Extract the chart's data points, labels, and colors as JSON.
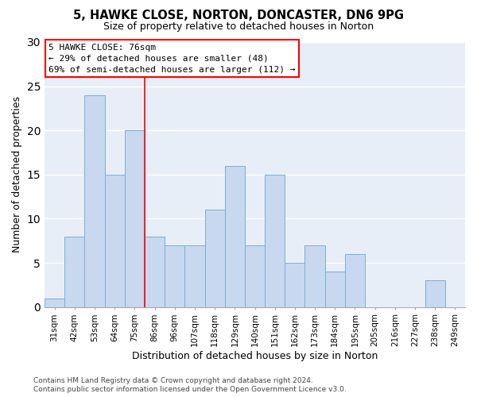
{
  "title1": "5, HAWKE CLOSE, NORTON, DONCASTER, DN6 9PG",
  "title2": "Size of property relative to detached houses in Norton",
  "xlabel": "Distribution of detached houses by size in Norton",
  "ylabel": "Number of detached properties",
  "categories": [
    "31sqm",
    "42sqm",
    "53sqm",
    "64sqm",
    "75sqm",
    "86sqm",
    "96sqm",
    "107sqm",
    "118sqm",
    "129sqm",
    "140sqm",
    "151sqm",
    "162sqm",
    "173sqm",
    "184sqm",
    "195sqm",
    "205sqm",
    "216sqm",
    "227sqm",
    "238sqm",
    "249sqm"
  ],
  "values": [
    1,
    8,
    24,
    15,
    20,
    8,
    7,
    7,
    11,
    16,
    7,
    15,
    5,
    7,
    4,
    6,
    0,
    0,
    0,
    3,
    0
  ],
  "bar_color": "#c8d8ee",
  "bar_edge_color": "#7aafd4",
  "ylim": [
    0,
    30
  ],
  "yticks": [
    0,
    5,
    10,
    15,
    20,
    25,
    30
  ],
  "annotation_title": "5 HAWKE CLOSE: 76sqm",
  "annotation_line1": "← 29% of detached houses are smaller (48)",
  "annotation_line2": "69% of semi-detached houses are larger (112) →",
  "footer1": "Contains HM Land Registry data © Crown copyright and database right 2024.",
  "footer2": "Contains public sector information licensed under the Open Government Licence v3.0.",
  "bg_color": "#ffffff",
  "plot_bg_color": "#e8eef8",
  "grid_color": "#ffffff",
  "red_line_index": 4.5,
  "title1_fontsize": 10.5,
  "title2_fontsize": 9,
  "ylabel_fontsize": 9,
  "xlabel_fontsize": 9,
  "tick_fontsize": 7.5,
  "annotation_fontsize": 8,
  "footer_fontsize": 6.5
}
